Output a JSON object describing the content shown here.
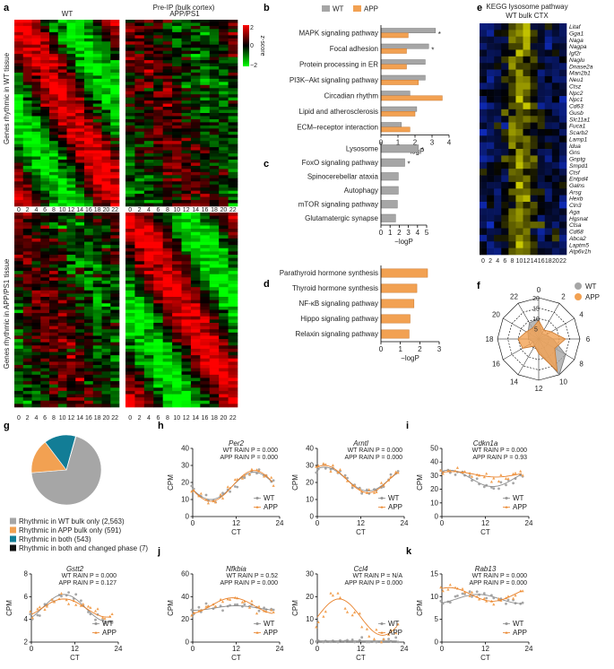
{
  "panel_labels": {
    "a": "a",
    "b": "b",
    "c": "c",
    "d": "d",
    "e": "e",
    "f": "f",
    "g": "g",
    "h": "h",
    "i": "i",
    "j": "j",
    "k": "k"
  },
  "colors": {
    "wt": "#a6a6a6",
    "app": "#f2a152",
    "wt_line": "#8c8c8c",
    "app_line": "#e8812a",
    "heat_red": "#d7191c",
    "heat_green": "#1a9641",
    "lyso_yellow": "#d8d800",
    "lyso_blue": "#1030d0"
  },
  "chart_data": [
    {
      "id": "a",
      "type": "heatmap",
      "title": "Pre-IP (bulk cortex)",
      "col_titles": [
        "WT",
        "APP/PS1"
      ],
      "row_titles": [
        "Genes rhythmic in WT tissue",
        "Genes rhythmic in APP/PS1 tissue"
      ],
      "x_ticks": [
        "0",
        "2",
        "4",
        "6",
        "8",
        "10",
        "12",
        "14",
        "16",
        "18",
        "20",
        "22"
      ],
      "colorbar": {
        "label": "z-score",
        "ticks": [
          "2",
          "0",
          "−2"
        ],
        "range": [
          -2,
          2
        ]
      }
    },
    {
      "id": "b",
      "type": "bar",
      "orientation": "horizontal",
      "legend": [
        "WT",
        "APP"
      ],
      "categories": [
        "MAPK signaling pathway",
        "Focal adhesion",
        "Protein processing in ER",
        "PI3K–Akt signaling pathway",
        "Circadian rhythm",
        "Lipid and atherosclerosis",
        "ECM–receptor interaction"
      ],
      "series": [
        {
          "name": "WT",
          "values": [
            3.2,
            2.8,
            2.6,
            2.6,
            1.7,
            2.1,
            1.2
          ]
        },
        {
          "name": "APP",
          "values": [
            1.6,
            1.5,
            1.5,
            2.2,
            3.6,
            2.0,
            1.7
          ]
        }
      ],
      "stars": [
        "*",
        "*",
        "",
        "",
        "",
        "",
        ""
      ],
      "xlim": [
        0,
        4
      ],
      "xticks": [
        "0",
        "1",
        "2",
        "3",
        "4"
      ],
      "xlabel": "−logP"
    },
    {
      "id": "c",
      "type": "bar",
      "orientation": "horizontal",
      "categories": [
        "Lysosome",
        "FoxO signaling pathway",
        "Spinocerebellar ataxia",
        "Autophagy",
        "mTOR signaling pathway",
        "Glutamatergic synapse"
      ],
      "series": [
        {
          "name": "WT",
          "values": [
            4.1,
            2.6,
            1.9,
            1.9,
            1.8,
            1.6
          ]
        }
      ],
      "stars": [
        "*",
        "*",
        "",
        "",
        "",
        ""
      ],
      "xlim": [
        0,
        5
      ],
      "xticks": [
        "0",
        "1",
        "2",
        "3",
        "4",
        "5"
      ],
      "xlabel": "−logP"
    },
    {
      "id": "d",
      "type": "bar",
      "orientation": "horizontal",
      "categories": [
        "Parathyroid hormone synthesis",
        "Thyroid hormone synthesis",
        "NF-κB signaling pathway",
        "Hippo signaling pathway",
        "Relaxin signaling pathway"
      ],
      "series": [
        {
          "name": "APP",
          "values": [
            2.4,
            1.85,
            1.7,
            1.5,
            1.45
          ]
        }
      ],
      "xlim": [
        0,
        3
      ],
      "xticks": [
        "0",
        "1",
        "2",
        "3"
      ],
      "xlabel": "−logP"
    },
    {
      "id": "e",
      "type": "heatmap",
      "title": "KEGG lysosome pathway",
      "subtitle": "WT bulk CTX",
      "genes": [
        "Litaf",
        "Gga1",
        "Naga",
        "Nagpa",
        "Igf2r",
        "Naglu",
        "Dnase2a",
        "Man2b1",
        "Neu1",
        "Ctsz",
        "Npc2",
        "Npc1",
        "Cd63",
        "Gusb",
        "Slc11a1",
        "Fuca1",
        "Scarb2",
        "Lamp1",
        "Idua",
        "Gns",
        "Gnptg",
        "Smpd1",
        "Ctsf",
        "Entpd4",
        "Galns",
        "Arsg",
        "Hexb",
        "Cln3",
        "Aga",
        "Hgsnat",
        "Ctsa",
        "Cd68",
        "Abca2",
        "Laptm5",
        "Atp6v1h"
      ],
      "x_ticks": [
        "0",
        "2",
        "4",
        "6",
        "8",
        "10",
        "12",
        "14",
        "16",
        "18",
        "20",
        "22"
      ]
    },
    {
      "id": "f",
      "type": "radar",
      "legend": [
        "WT",
        "APP"
      ],
      "angle_labels": [
        "0",
        "2",
        "4",
        "6",
        "8",
        "10",
        "12",
        "14",
        "16",
        "18",
        "20",
        "22"
      ],
      "radial_ticks": [
        "5",
        "10",
        "15",
        "20"
      ],
      "rmax": 20,
      "series": [
        {
          "name": "WT",
          "values": [
            10,
            3,
            4,
            7,
            15,
            20,
            6,
            4,
            3,
            5,
            6,
            9
          ]
        },
        {
          "name": "APP",
          "values": [
            9,
            5,
            7,
            13,
            9,
            18,
            7,
            4,
            9,
            10,
            7,
            6
          ]
        }
      ]
    },
    {
      "id": "g",
      "type": "pie",
      "labels": [
        "Rhythmic in WT bulk only (2,563)",
        "Rhythmic in APP bulk only (591)",
        "Rhythmic in both (543)",
        "Rhythmic in both and changed phase (7)"
      ],
      "values": [
        2563,
        591,
        543,
        7
      ],
      "colors": [
        "#a6a6a6",
        "#f2a152",
        "#127d96",
        "#111111"
      ]
    },
    {
      "id": "h1",
      "type": "scatter",
      "gene": "Per2",
      "ylim": [
        0,
        40
      ],
      "yticks": [
        "0",
        "10",
        "20",
        "30",
        "40"
      ],
      "stats": [
        "WT RAIN P = 0.000",
        "APP RAIN P = 0.000"
      ],
      "wt_peak": 17,
      "app_peak": 17,
      "wt_mean": 18,
      "app_mean": 18,
      "wt_amp": 8,
      "app_amp": 9
    },
    {
      "id": "h2",
      "type": "scatter",
      "gene": "Arntl",
      "ylim": [
        0,
        40
      ],
      "yticks": [
        "0",
        "10",
        "20",
        "30",
        "40"
      ],
      "stats": [
        "WT RAIN P = 0.000",
        "APP RAIN P = 0.000"
      ],
      "wt_peak": 2,
      "app_peak": 2,
      "wt_mean": 22,
      "app_mean": 22,
      "wt_amp": 7,
      "app_amp": 8
    },
    {
      "id": "i",
      "type": "scatter",
      "gene": "Cdkn1a",
      "ylim": [
        0,
        50
      ],
      "yticks": [
        "0",
        "10",
        "20",
        "30",
        "40",
        "50"
      ],
      "stats": [
        "WT RAIN P = 0.000",
        "APP RAIN P = 0.93"
      ],
      "wt_peak": 2,
      "app_peak": 3,
      "wt_mean": 28,
      "app_mean": 31,
      "wt_amp": 6,
      "app_amp": 2
    },
    {
      "id": "h3",
      "type": "scatter",
      "gene": "Gstt2",
      "ylim": [
        2,
        8
      ],
      "yticks": [
        "2",
        "4",
        "6",
        "8"
      ],
      "stats": [
        "WT RAIN P = 0.000",
        "APP RAIN P = 0.127"
      ],
      "wt_peak": 9,
      "app_peak": 9,
      "wt_mean": 5,
      "app_mean": 5,
      "wt_amp": 1.2,
      "app_amp": 0.8
    },
    {
      "id": "j1",
      "type": "scatter",
      "gene": "Nfkbia",
      "ylim": [
        0,
        60
      ],
      "yticks": [
        "0",
        "20",
        "40",
        "60"
      ],
      "stats": [
        "WT RAIN P = 0.52",
        "APP RAIN P = 0.000"
      ],
      "wt_peak": 12,
      "app_peak": 11,
      "wt_mean": 30,
      "app_mean": 32,
      "wt_amp": 2,
      "app_amp": 7
    },
    {
      "id": "j2",
      "type": "scatter",
      "gene": "Ccl4",
      "ylim": [
        0,
        30
      ],
      "yticks": [
        "0",
        "10",
        "20",
        "30"
      ],
      "stats": [
        "WT RAIN P = N/A",
        "APP RAIN P = 0.000"
      ],
      "wt_peak": 0,
      "app_peak": 6,
      "wt_mean": 0.5,
      "app_mean": 11,
      "wt_amp": 0,
      "app_amp": 8
    },
    {
      "id": "k",
      "type": "scatter",
      "gene": "Rab13",
      "ylim": [
        0,
        15
      ],
      "yticks": [
        "0",
        "5",
        "10",
        "15"
      ],
      "stats": [
        "WT RAIN P = 0.000",
        "APP RAIN P = 0.000"
      ],
      "wt_peak": 10,
      "app_peak": 2,
      "wt_mean": 9.5,
      "app_mean": 10.5,
      "wt_amp": 1,
      "app_amp": 1.5
    }
  ],
  "scatter_common": {
    "xlabel": "CT",
    "ylabel": "CPM",
    "xticks": [
      "0",
      "12",
      "24"
    ],
    "legend": [
      "WT",
      "APP"
    ]
  }
}
